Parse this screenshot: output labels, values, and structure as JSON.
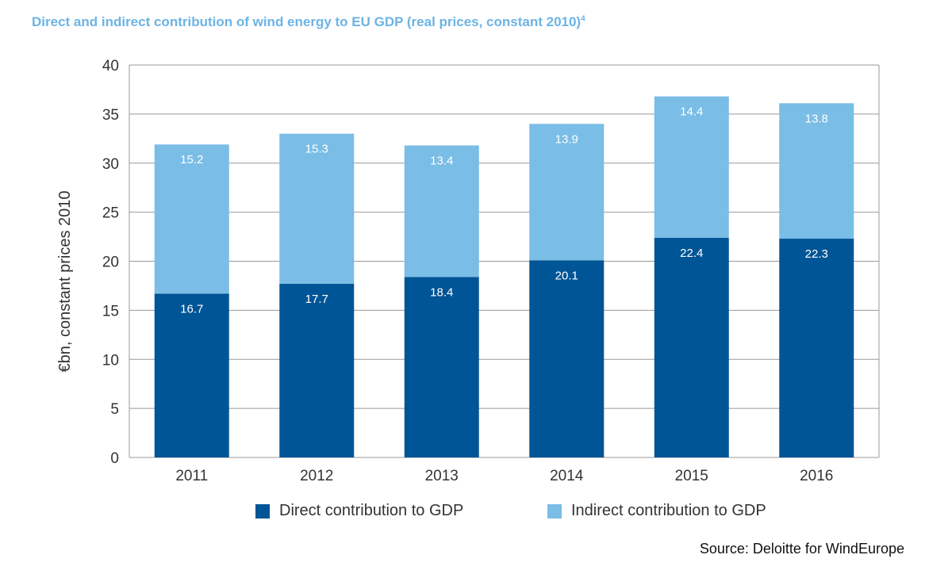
{
  "title": "Direct and indirect contribution of wind energy to EU GDP (real prices, constant 2010)",
  "title_superscript": "4",
  "source": "Source: Deloitte for WindEurope",
  "chart_data": {
    "type": "bar",
    "stacked": true,
    "categories": [
      "2011",
      "2012",
      "2013",
      "2014",
      "2015",
      "2016"
    ],
    "series": [
      {
        "name": "Direct contribution to GDP",
        "values": [
          16.7,
          17.7,
          18.4,
          20.1,
          22.4,
          22.3
        ],
        "color": "#005596"
      },
      {
        "name": "Indirect contribution to GDP",
        "values": [
          15.2,
          15.3,
          13.4,
          13.9,
          14.4,
          13.8
        ],
        "color": "#7abde6"
      }
    ],
    "ylabel": "€bn, constant prices 2010",
    "xlabel": "",
    "ylim": [
      0,
      40
    ],
    "yticks": [
      "0",
      "5",
      "10",
      "15",
      "20",
      "25",
      "30",
      "35",
      "40"
    ],
    "grid": true,
    "legend_position": "bottom",
    "colors": {
      "grid": "#999999"
    }
  }
}
